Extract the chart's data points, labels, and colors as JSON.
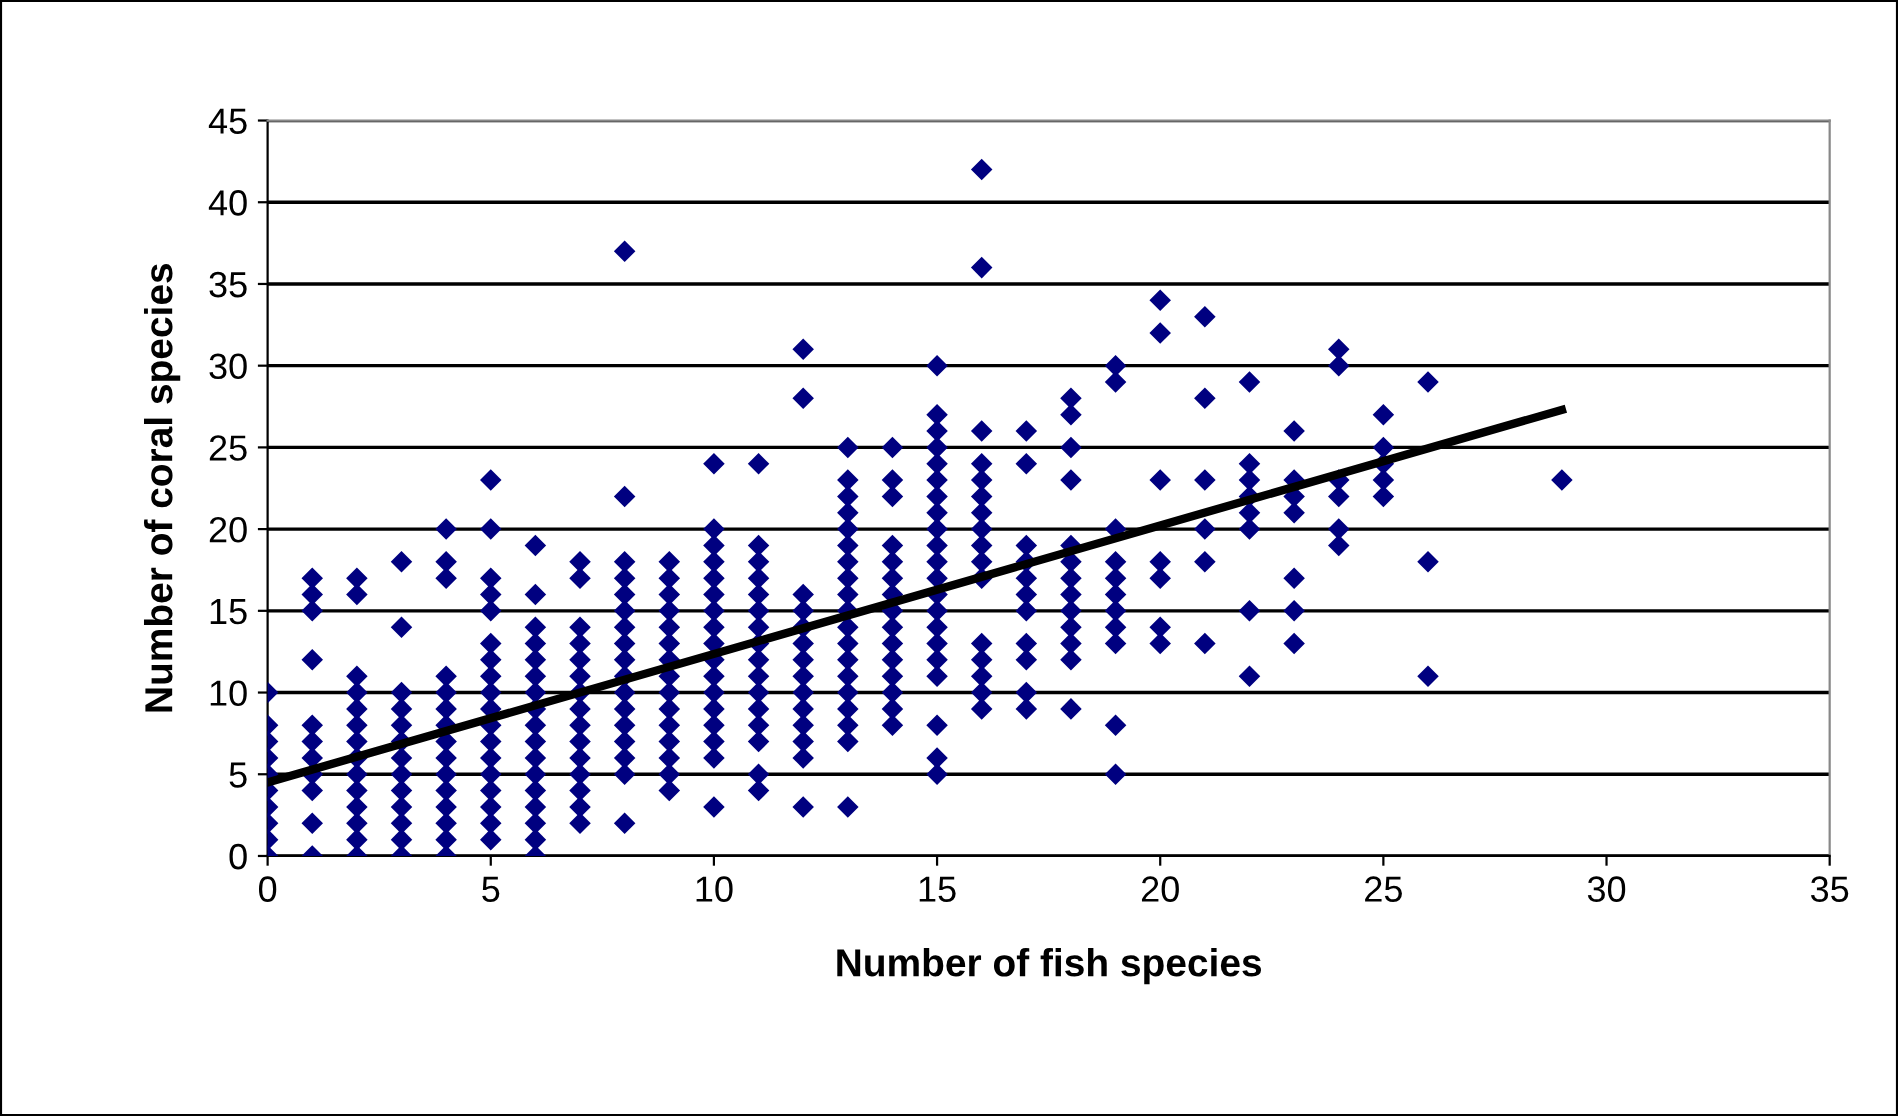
{
  "chart_data": {
    "type": "scatter",
    "xlabel": "Number of fish species",
    "ylabel": "Number of coral species",
    "xlim": [
      0,
      35
    ],
    "xticks": [
      0,
      5,
      10,
      15,
      20,
      25,
      30,
      35
    ],
    "ylim": [
      0,
      45
    ],
    "yticks": [
      0,
      5,
      10,
      15,
      20,
      25,
      30,
      35,
      40,
      45
    ],
    "grid": "y",
    "series": [
      {
        "color": "#000080",
        "marker": "diamond",
        "x": [
          0,
          0,
          0,
          0,
          0,
          0,
          0,
          0,
          0,
          0,
          1,
          1,
          1,
          1,
          1,
          1,
          1,
          1,
          1,
          1,
          1,
          2,
          2,
          2,
          2,
          2,
          2,
          2,
          2,
          2,
          2,
          2,
          2,
          2,
          2,
          3,
          3,
          3,
          3,
          3,
          3,
          3,
          3,
          3,
          3,
          3,
          3,
          3,
          4,
          4,
          4,
          4,
          4,
          4,
          4,
          4,
          4,
          4,
          4,
          4,
          4,
          4,
          4,
          5,
          5,
          5,
          5,
          5,
          5,
          5,
          5,
          5,
          5,
          5,
          5,
          5,
          5,
          5,
          5,
          5,
          5,
          6,
          6,
          6,
          6,
          6,
          6,
          6,
          6,
          6,
          6,
          6,
          6,
          6,
          6,
          6,
          6,
          6,
          7,
          7,
          7,
          7,
          7,
          7,
          7,
          7,
          7,
          7,
          7,
          7,
          7,
          7,
          7,
          8,
          8,
          8,
          8,
          8,
          8,
          8,
          8,
          8,
          8,
          8,
          8,
          8,
          8,
          8,
          8,
          8,
          9,
          9,
          9,
          9,
          9,
          9,
          9,
          9,
          9,
          9,
          9,
          9,
          9,
          9,
          9,
          10,
          10,
          10,
          10,
          10,
          10,
          10,
          10,
          10,
          10,
          10,
          10,
          10,
          10,
          10,
          10,
          10,
          11,
          11,
          11,
          11,
          11,
          11,
          11,
          11,
          11,
          11,
          11,
          11,
          11,
          11,
          11,
          11,
          12,
          12,
          12,
          12,
          12,
          12,
          12,
          12,
          12,
          12,
          12,
          12,
          12,
          12,
          13,
          13,
          13,
          13,
          13,
          13,
          13,
          13,
          13,
          13,
          13,
          13,
          13,
          13,
          13,
          13,
          13,
          13,
          13,
          14,
          14,
          14,
          14,
          14,
          14,
          14,
          14,
          14,
          14,
          14,
          14,
          14,
          14,
          14,
          15,
          15,
          15,
          15,
          15,
          15,
          15,
          15,
          15,
          15,
          15,
          15,
          15,
          15,
          15,
          15,
          15,
          15,
          15,
          15,
          15,
          16,
          16,
          16,
          16,
          16,
          16,
          16,
          16,
          16,
          16,
          16,
          16,
          16,
          16,
          16,
          16,
          17,
          17,
          17,
          17,
          17,
          17,
          17,
          17,
          17,
          17,
          17,
          18,
          18,
          18,
          18,
          18,
          18,
          18,
          18,
          18,
          18,
          18,
          18,
          18,
          19,
          19,
          19,
          19,
          19,
          19,
          19,
          19,
          19,
          19,
          19,
          20,
          20,
          20,
          20,
          20,
          20,
          20,
          21,
          21,
          21,
          21,
          21,
          21,
          22,
          22,
          22,
          22,
          22,
          22,
          22,
          22,
          23,
          23,
          23,
          23,
          23,
          23,
          23,
          24,
          24,
          24,
          24,
          24,
          24,
          25,
          25,
          25,
          25,
          25,
          26,
          26,
          26,
          29
        ],
        "values": [
          0,
          1,
          2,
          3,
          4,
          5,
          6,
          7,
          8,
          10,
          0,
          2,
          4,
          5,
          6,
          7,
          8,
          12,
          15,
          16,
          17,
          0,
          1,
          2,
          3,
          4,
          5,
          6,
          7,
          8,
          9,
          10,
          11,
          16,
          17,
          0,
          1,
          2,
          3,
          4,
          5,
          6,
          7,
          8,
          9,
          10,
          14,
          18,
          0,
          1,
          2,
          3,
          4,
          5,
          6,
          7,
          8,
          9,
          10,
          11,
          17,
          18,
          20,
          1,
          2,
          3,
          4,
          5,
          6,
          7,
          8,
          9,
          10,
          11,
          12,
          13,
          15,
          16,
          17,
          20,
          23,
          0,
          1,
          2,
          3,
          4,
          5,
          6,
          7,
          8,
          9,
          10,
          11,
          12,
          13,
          14,
          16,
          19,
          2,
          3,
          4,
          5,
          6,
          7,
          8,
          9,
          10,
          11,
          12,
          13,
          14,
          17,
          18,
          2,
          5,
          6,
          7,
          8,
          9,
          10,
          11,
          12,
          13,
          14,
          15,
          16,
          17,
          18,
          22,
          37,
          4,
          5,
          6,
          7,
          8,
          9,
          10,
          11,
          12,
          13,
          14,
          15,
          16,
          17,
          18,
          3,
          6,
          7,
          8,
          9,
          10,
          11,
          12,
          13,
          14,
          15,
          16,
          17,
          18,
          19,
          20,
          24,
          4,
          5,
          7,
          8,
          9,
          10,
          11,
          12,
          13,
          14,
          15,
          16,
          17,
          18,
          19,
          24,
          3,
          6,
          7,
          8,
          9,
          10,
          11,
          12,
          13,
          14,
          15,
          16,
          28,
          31,
          3,
          7,
          8,
          9,
          10,
          11,
          12,
          13,
          14,
          15,
          16,
          17,
          18,
          19,
          20,
          21,
          22,
          23,
          25,
          8,
          9,
          10,
          11,
          12,
          13,
          14,
          15,
          16,
          17,
          18,
          19,
          22,
          23,
          25,
          5,
          6,
          8,
          11,
          12,
          13,
          14,
          15,
          16,
          17,
          18,
          19,
          20,
          21,
          22,
          23,
          24,
          25,
          26,
          27,
          30,
          9,
          10,
          11,
          12,
          13,
          17,
          18,
          19,
          20,
          21,
          22,
          23,
          24,
          26,
          36,
          42,
          9,
          10,
          12,
          13,
          15,
          16,
          17,
          18,
          19,
          24,
          26,
          9,
          12,
          13,
          14,
          15,
          16,
          17,
          18,
          19,
          23,
          25,
          27,
          28,
          5,
          8,
          13,
          14,
          15,
          16,
          17,
          18,
          20,
          29,
          30,
          13,
          14,
          17,
          18,
          23,
          32,
          34,
          13,
          18,
          20,
          23,
          28,
          33,
          11,
          15,
          20,
          21,
          22,
          23,
          24,
          29,
          13,
          15,
          17,
          21,
          22,
          23,
          26,
          19,
          20,
          22,
          23,
          30,
          31,
          22,
          23,
          24,
          25,
          27,
          11,
          18,
          29,
          23
        ]
      },
      {
        "type": "line",
        "color": "#000000",
        "x": [
          0,
          29
        ],
        "values": [
          4.5,
          27.3
        ]
      }
    ]
  }
}
